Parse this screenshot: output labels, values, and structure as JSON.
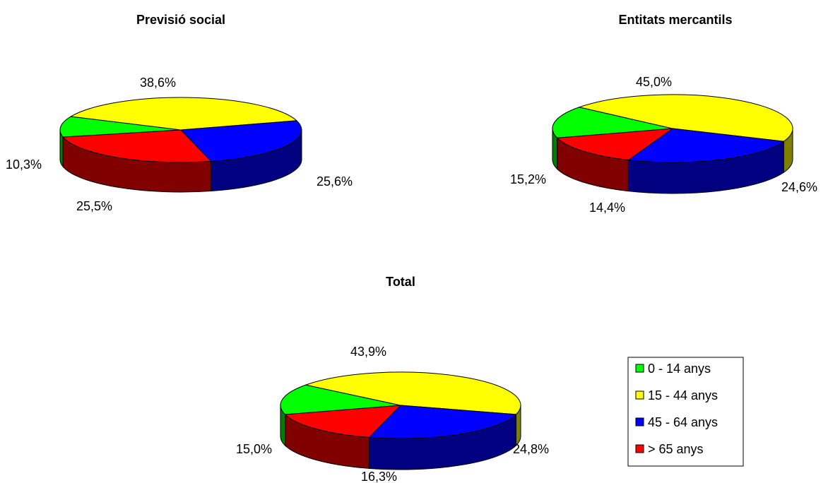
{
  "chart_data": [
    {
      "type": "pie",
      "title": "Previsió social",
      "slices": [
        {
          "category": "0 - 14 anys",
          "value": 10.3,
          "label": "10,3%",
          "color": "#00ff00",
          "side_color": "#008000"
        },
        {
          "category": "15 - 44 anys",
          "value": 38.6,
          "label": "38,6%",
          "color": "#ffff00",
          "side_color": "#808000"
        },
        {
          "category": "45 - 64 anys",
          "value": 25.6,
          "label": "25,6%",
          "color": "#0000ff",
          "side_color": "#000080"
        },
        {
          "category": "> 65 anys",
          "value": 25.5,
          "label": "25,5%",
          "color": "#ff0000",
          "side_color": "#800000"
        }
      ]
    },
    {
      "type": "pie",
      "title": "Entitats mercantils",
      "slices": [
        {
          "category": "0 - 14 anys",
          "value": 15.2,
          "label": "15,2%",
          "color": "#00ff00",
          "side_color": "#008000"
        },
        {
          "category": "15 - 44 anys",
          "value": 45.0,
          "label": "45,0%",
          "color": "#ffff00",
          "side_color": "#808000"
        },
        {
          "category": "45 - 64 anys",
          "value": 24.6,
          "label": "24,6%",
          "color": "#0000ff",
          "side_color": "#000080"
        },
        {
          "category": "> 65 anys",
          "value": 14.4,
          "label": "14,4%",
          "color": "#ff0000",
          "side_color": "#800000"
        }
      ]
    },
    {
      "type": "pie",
      "title": "Total",
      "slices": [
        {
          "category": "0 - 14 anys",
          "value": 15.0,
          "label": "15,0%",
          "color": "#00ff00",
          "side_color": "#008000"
        },
        {
          "category": "15 - 44 anys",
          "value": 43.9,
          "label": "43,9%",
          "color": "#ffff00",
          "side_color": "#808000"
        },
        {
          "category": "45 - 64 anys",
          "value": 24.8,
          "label": "24,8%",
          "color": "#0000ff",
          "side_color": "#000080"
        },
        {
          "category": "> 65 anys",
          "value": 16.3,
          "label": "16,3%",
          "color": "#ff0000",
          "side_color": "#800000"
        }
      ]
    }
  ],
  "legend": {
    "placement": "bottom-right",
    "items": [
      {
        "label": "0 - 14 anys",
        "color": "#00ff00"
      },
      {
        "label": "15 - 44 anys",
        "color": "#ffff00"
      },
      {
        "label": "45 - 64 anys",
        "color": "#0000ff"
      },
      {
        "label": "> 65 anys",
        "color": "#ff0000"
      }
    ]
  }
}
